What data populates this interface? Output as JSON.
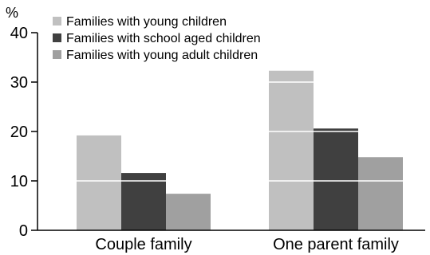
{
  "chart_data": {
    "type": "bar",
    "title": "",
    "xlabel": "",
    "ylabel": "%",
    "ylim": [
      0,
      40
    ],
    "yticks": [
      0,
      10,
      20,
      30,
      40
    ],
    "categories": [
      "Couple family",
      "One parent family"
    ],
    "series": [
      {
        "name": "Families with young children",
        "values": [
          19.2,
          32.3
        ],
        "color": "#c0c0c0"
      },
      {
        "name": "Families with school aged children",
        "values": [
          11.6,
          20.6
        ],
        "color": "#404040"
      },
      {
        "name": "Families with young adult children",
        "values": [
          7.4,
          14.8
        ],
        "color": "#a0a0a0"
      }
    ],
    "grid": false,
    "gridlines_inside_bars": true,
    "legend_position": "top-left"
  }
}
